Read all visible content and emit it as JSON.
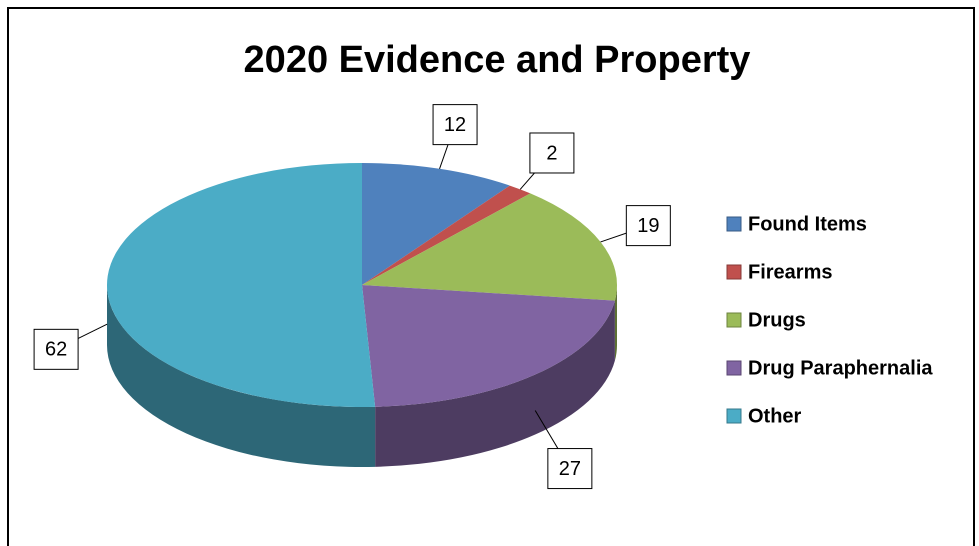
{
  "chart_data": {
    "type": "pie",
    "title": "2020 Evidence and Property",
    "categories": [
      "Found Items",
      "Firearms",
      "Drugs",
      "Drug Paraphernalia",
      "Other"
    ],
    "values": [
      12,
      2,
      19,
      27,
      62
    ],
    "colors": [
      "#4f81bd",
      "#c0504d",
      "#9bbb59",
      "#8064a2",
      "#4bacc6"
    ],
    "legend": "right"
  }
}
